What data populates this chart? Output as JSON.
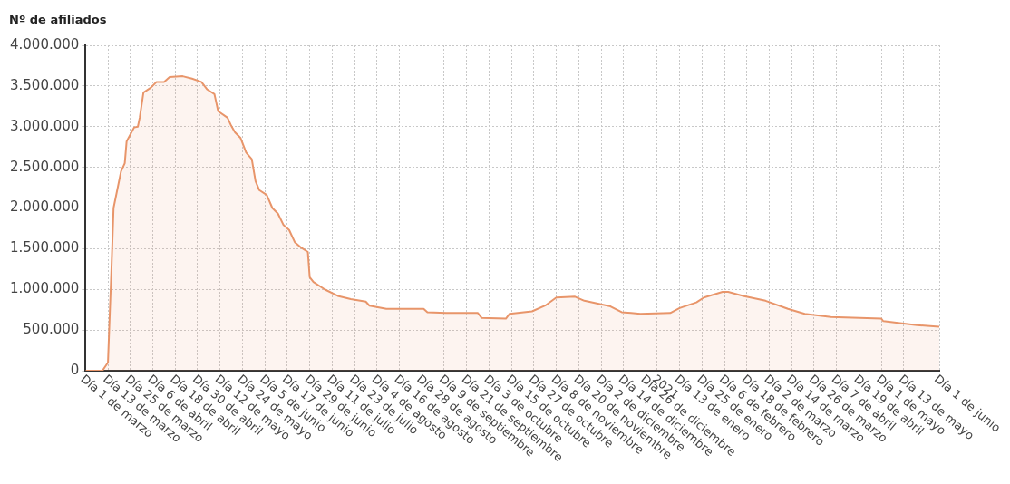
{
  "chart_data": {
    "type": "area",
    "ylabel": "Nº de afiliados",
    "x": [
      "2020-03-01",
      "2020-03-10",
      "2020-03-13",
      "2020-03-15",
      "2020-03-16",
      "2020-03-20",
      "2020-03-22",
      "2020-03-23",
      "2020-03-27",
      "2020-03-29",
      "2020-03-30",
      "2020-04-01",
      "2020-04-05",
      "2020-04-08",
      "2020-04-12",
      "2020-04-15",
      "2020-04-22",
      "2020-04-27",
      "2020-05-02",
      "2020-05-05",
      "2020-05-09",
      "2020-05-11",
      "2020-05-16",
      "2020-05-18",
      "2020-05-20",
      "2020-05-23",
      "2020-05-26",
      "2020-05-29",
      "2020-05-31",
      "2020-06-02",
      "2020-06-06",
      "2020-06-09",
      "2020-06-12",
      "2020-06-15",
      "2020-06-18",
      "2020-06-21",
      "2020-06-24",
      "2020-06-28",
      "2020-06-29",
      "2020-07-01",
      "2020-07-07",
      "2020-07-14",
      "2020-07-21",
      "2020-07-29",
      "2020-07-31",
      "2020-08-09",
      "2020-08-29",
      "2020-08-31",
      "2020-09-10",
      "2020-09-27",
      "2020-09-29",
      "2020-10-12",
      "2020-10-14",
      "2020-10-26",
      "2020-11-02",
      "2020-11-08",
      "2020-11-18",
      "2020-11-23",
      "2020-12-07",
      "2020-12-13",
      "2020-12-18",
      "2020-12-23",
      "2021-01-08",
      "2021-01-13",
      "2021-01-22",
      "2021-01-26",
      "2021-02-05",
      "2021-02-08",
      "2021-02-16",
      "2021-02-28",
      "2021-03-12",
      "2021-03-21",
      "2021-04-04",
      "2021-05-01",
      "2021-05-02",
      "2021-05-20",
      "2021-06-01"
    ],
    "series": [
      {
        "color": "#e8956a",
        "values": [
          0,
          0,
          100000,
          1330000,
          2000000,
          2450000,
          2550000,
          2820000,
          2990000,
          3000000,
          3110000,
          3420000,
          3480000,
          3550000,
          3550000,
          3610000,
          3620000,
          3590000,
          3550000,
          3460000,
          3400000,
          3190000,
          3110000,
          3010000,
          2930000,
          2860000,
          2680000,
          2600000,
          2330000,
          2220000,
          2160000,
          2000000,
          1930000,
          1790000,
          1730000,
          1580000,
          1520000,
          1460000,
          1150000,
          1090000,
          1000000,
          920000,
          880000,
          850000,
          800000,
          760000,
          760000,
          720000,
          710000,
          710000,
          650000,
          640000,
          700000,
          730000,
          800000,
          900000,
          910000,
          860000,
          790000,
          720000,
          710000,
          700000,
          710000,
          770000,
          840000,
          900000,
          970000,
          970000,
          920000,
          860000,
          760000,
          700000,
          660000,
          640000,
          610000,
          560000,
          540000
        ]
      }
    ],
    "xlim": [
      "2020-03-01",
      "2021-06-01"
    ],
    "xticks": [
      {
        "value": "2020-03-01",
        "label": "Día 1 de marzo"
      },
      {
        "value": "2020-03-13",
        "label": "Día 13 de marzo"
      },
      {
        "value": "2020-03-25",
        "label": "Día 25 de marzo"
      },
      {
        "value": "2020-04-06",
        "label": "Día 6 de abril"
      },
      {
        "value": "2020-04-18",
        "label": "Día 18 de abril"
      },
      {
        "value": "2020-04-30",
        "label": "Día 30 de abril"
      },
      {
        "value": "2020-05-12",
        "label": "Día 12 de mayo"
      },
      {
        "value": "2020-05-24",
        "label": "Día 24 de mayo"
      },
      {
        "value": "2020-06-05",
        "label": "Día 5 de junio"
      },
      {
        "value": "2020-06-17",
        "label": "Día 17 de junio"
      },
      {
        "value": "2020-06-29",
        "label": "Día 29 de junio"
      },
      {
        "value": "2020-07-11",
        "label": "Día 11 de julio"
      },
      {
        "value": "2020-07-23",
        "label": "Día 23 de julio"
      },
      {
        "value": "2020-08-04",
        "label": "Día 4 de agosto"
      },
      {
        "value": "2020-08-16",
        "label": "Día 16 de agosto"
      },
      {
        "value": "2020-08-28",
        "label": "Día 28 de agosto"
      },
      {
        "value": "2020-09-09",
        "label": "Día 9 de septiembre"
      },
      {
        "value": "2020-09-21",
        "label": "Día 21 de septiembre"
      },
      {
        "value": "2020-10-03",
        "label": "Día 3 de octubre"
      },
      {
        "value": "2020-10-15",
        "label": "Día 15 de octubre"
      },
      {
        "value": "2020-10-27",
        "label": "Día 27 de octubre"
      },
      {
        "value": "2020-11-08",
        "label": "Día 8 de noviembre"
      },
      {
        "value": "2020-11-20",
        "label": "Día 20 de noviembre"
      },
      {
        "value": "2020-12-02",
        "label": "Día 2 de diciembre"
      },
      {
        "value": "2020-12-14",
        "label": "Día 14 de diciembre"
      },
      {
        "value": "2020-12-26",
        "label": "Día 26 de diciembre"
      },
      {
        "value": "2021-01-01",
        "label": "2021"
      },
      {
        "value": "2021-01-13",
        "label": "Día 13 de enero"
      },
      {
        "value": "2021-01-25",
        "label": "Día 25 de enero"
      },
      {
        "value": "2021-02-06",
        "label": "Día 6 de febrero"
      },
      {
        "value": "2021-02-18",
        "label": "Día 18 de febrero"
      },
      {
        "value": "2021-03-02",
        "label": "Día 2 de marzo"
      },
      {
        "value": "2021-03-14",
        "label": "Día 14 de marzo"
      },
      {
        "value": "2021-03-26",
        "label": "Día 26 de marzo"
      },
      {
        "value": "2021-04-07",
        "label": "Día 7 de abril"
      },
      {
        "value": "2021-04-19",
        "label": "Día 19 de abril"
      },
      {
        "value": "2021-05-01",
        "label": "Día 1 de mayo"
      },
      {
        "value": "2021-05-13",
        "label": "Día 13 de mayo"
      },
      {
        "value": "2021-06-01",
        "label": "Día 1 de junio"
      }
    ],
    "ylim": [
      0,
      4000000
    ],
    "yticks": [
      0,
      {
        "value": 500000,
        "label": "500.000"
      },
      {
        "value": 1000000,
        "label": "1.000.000"
      },
      {
        "value": 1500000,
        "label": "1.500.000"
      },
      {
        "value": 2000000,
        "label": "2.000.000"
      },
      {
        "value": 2500000,
        "label": "2.500.000"
      },
      {
        "value": 3000000,
        "label": "3.000.000"
      },
      {
        "value": 3500000,
        "label": "3.500.000"
      },
      {
        "value": 4000000,
        "label": "4.000.000"
      }
    ],
    "grid": true,
    "legend": false,
    "marker": "none",
    "line_style": "solid"
  }
}
